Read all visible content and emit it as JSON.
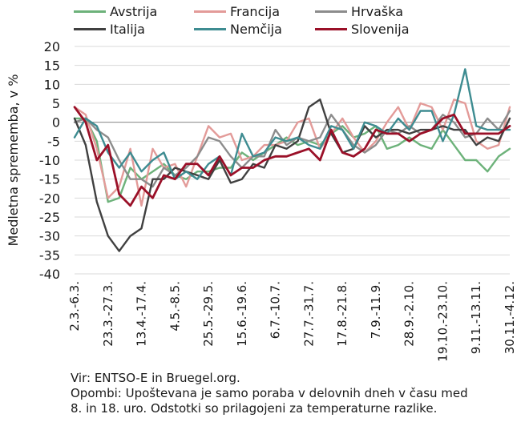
{
  "chart_data": {
    "type": "line",
    "ylabel": "Medletna sprememba, v %",
    "xlabel": "",
    "ylim": [
      -40,
      20
    ],
    "yticks": [
      20,
      15,
      10,
      5,
      0,
      -5,
      -10,
      -15,
      -20,
      -25,
      -30,
      -35,
      -40
    ],
    "grid": true,
    "legend_position": "top",
    "x_labels": [
      "2.3.-6.3.",
      "23.3.-27.3.",
      "13.4.-17.4.",
      "4.5.-8.5.",
      "25.5.-29.5.",
      "15.6.-19.6.",
      "6.7.-10.7.",
      "27.7.-31.7.",
      "17.8.-21.8.",
      "7.9.-11.9.",
      "28.9.-2.10.",
      "19.10.-23.10.",
      "9.11.-13.11.",
      "30.11.-4.12."
    ],
    "x_label_positions": [
      0,
      3,
      6,
      9,
      12,
      15,
      18,
      21,
      24,
      27,
      30,
      33,
      36,
      39
    ],
    "num_weeks": 40,
    "series": [
      {
        "name": "Avstrija",
        "color": "#6db27a",
        "values": [
          1,
          1,
          -5,
          -21,
          -20,
          -12,
          -15,
          -13,
          -11,
          -14,
          -15,
          -13,
          -13,
          -12,
          -12,
          -8,
          -10,
          -8,
          -6,
          -4,
          -6,
          -5,
          -6,
          -3,
          -1,
          -4,
          -3,
          -1,
          -7,
          -6,
          -4,
          -6,
          -7,
          -2,
          -6,
          -10,
          -10,
          -13,
          -9,
          -7
        ]
      },
      {
        "name": "Francija",
        "color": "#e39b99",
        "values": [
          4,
          2,
          -7,
          -20,
          -17,
          -7,
          -22,
          -7,
          -12,
          -11,
          -17,
          -9,
          -1,
          -4,
          -3,
          -10,
          -9,
          -6,
          -6,
          -5,
          0,
          1,
          -7,
          -3,
          1,
          -4,
          -8,
          -5,
          0,
          4,
          -2,
          5,
          4,
          -2,
          6,
          5,
          -5,
          -7,
          -6,
          4
        ]
      },
      {
        "name": "Hrvaška",
        "color": "#8c8c8c",
        "values": [
          0,
          1,
          -2,
          -4,
          -10,
          -15,
          -15,
          -17,
          -12,
          -14,
          -12,
          -9,
          -4,
          -5,
          -9,
          -12,
          -9,
          -9,
          -2,
          -6,
          -4,
          -5,
          -4,
          2,
          -2,
          -6,
          -8,
          -6,
          -2,
          -3,
          -1,
          -3,
          -2,
          2,
          0,
          -4,
          -3,
          1,
          -2,
          3
        ]
      },
      {
        "name": "Italija",
        "color": "#404040",
        "values": [
          1,
          -6,
          -21,
          -30,
          -34,
          -30,
          -28,
          -15,
          -15,
          -12,
          -13,
          -14,
          -15,
          -10,
          -16,
          -15,
          -11,
          -12,
          -6,
          -7,
          -5,
          4,
          6,
          -3,
          -8,
          -7,
          -1,
          -4,
          -2,
          -2,
          -3,
          -2,
          -2,
          -1,
          -2,
          -2,
          -6,
          -4,
          -5,
          1
        ]
      },
      {
        "name": "Nemčija",
        "color": "#3e8c91",
        "values": [
          -4,
          1,
          -1,
          -8,
          -12,
          -8,
          -13,
          -10,
          -8,
          -15,
          -13,
          -15,
          -11,
          -9,
          -14,
          -3,
          -9,
          -8,
          -4,
          -5,
          -4,
          -6,
          -7,
          -1,
          -2,
          -7,
          0,
          -1,
          -3,
          1,
          -2,
          3,
          3,
          -5,
          2,
          14,
          -1,
          -2,
          -2,
          -2
        ]
      },
      {
        "name": "Slovenija",
        "color": "#9a1028",
        "values": [
          4,
          0,
          -10,
          -6,
          -19,
          -22,
          -17,
          -20,
          -14,
          -15,
          -11,
          -11,
          -14,
          -9,
          -14,
          -12,
          -12,
          -10,
          -9,
          -9,
          -8,
          -7,
          -10,
          -2,
          -8,
          -9,
          -7,
          -2,
          -3,
          -3,
          -5,
          -3,
          -2,
          1,
          2,
          -3,
          -3,
          -3,
          -3,
          -1
        ]
      }
    ]
  },
  "notes": {
    "source": "Vir: ENTSO-E in Bruegel.org.",
    "notes_line1": "Opombi: Upoštevana je samo poraba v delovnih dneh v času med",
    "notes_line2": "8. in 18. uro. Odstotki so prilagojeni za temperaturne razlike."
  }
}
